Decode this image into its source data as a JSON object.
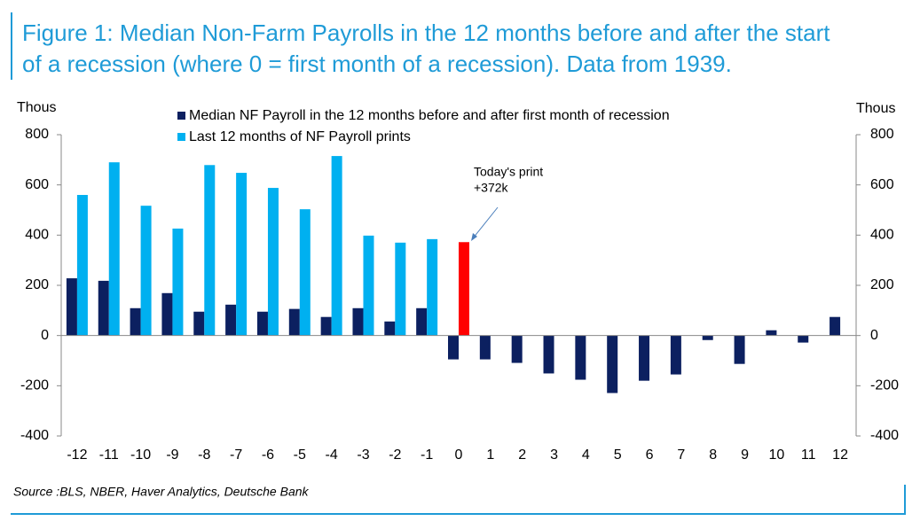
{
  "chart_data": {
    "type": "bar",
    "title": [
      "Figure 1: Median Non-Farm Payrolls in the 12 months before and after the start",
      "of a recession (where 0 = first month of a recession). Data from 1939."
    ],
    "source": "Source :BLS, NBER, Haver Analytics, Deutsche Bank",
    "ylabel": "Thous",
    "y2label": "Thous",
    "categories": [
      -12,
      -11,
      -10,
      -9,
      -8,
      -7,
      -6,
      -5,
      -4,
      -3,
      -2,
      -1,
      0,
      1,
      2,
      3,
      4,
      5,
      6,
      7,
      8,
      9,
      10,
      11,
      12
    ],
    "series": [
      {
        "name": "Median NF Payroll in the 12 months before and after first month of recession",
        "color": "#0c2060",
        "values": [
          228,
          218,
          109,
          169,
          95,
          123,
          95,
          106,
          74,
          109,
          56,
          109,
          -95,
          -95,
          -109,
          -151,
          -176,
          -229,
          -180,
          -155,
          -18,
          -113,
          21,
          -28,
          74
        ]
      },
      {
        "name": "Last 12 months of NF Payroll prints",
        "color": "#00b0f0",
        "values": [
          560,
          690,
          517,
          426,
          679,
          648,
          588,
          503,
          715,
          398,
          370,
          384,
          372,
          null,
          null,
          null,
          null,
          null,
          null,
          null,
          null,
          null,
          null,
          null,
          null
        ]
      }
    ],
    "annotation": {
      "lines": [
        "Today's print",
        "+372k"
      ],
      "color": "#ff0000",
      "at": 12
    },
    "ylim": [
      -400,
      800
    ],
    "yticks": [
      -400,
      -200,
      0,
      200,
      400,
      600,
      800
    ],
    "y2lim": [
      -400,
      800
    ],
    "y2ticks": [
      -400,
      -200,
      0,
      200,
      400,
      600,
      800
    ]
  }
}
